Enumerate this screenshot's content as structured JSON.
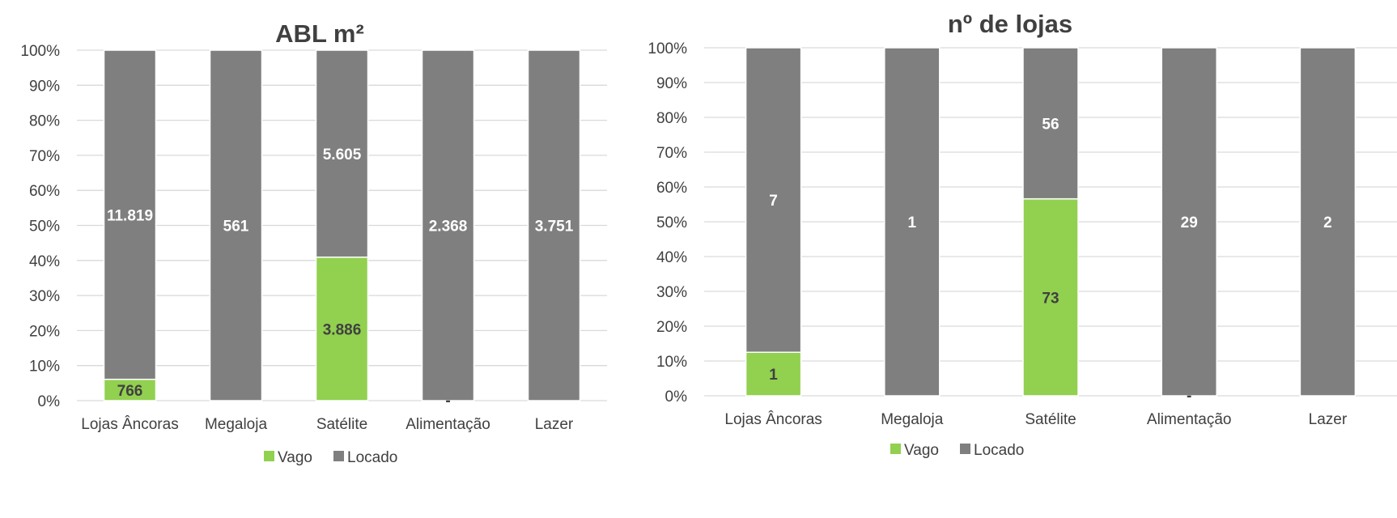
{
  "colors": {
    "vago": "#92d050",
    "locado": "#7f7f7f",
    "grid": "#d9d9d9",
    "text": "#404040"
  },
  "chart_data": [
    {
      "type": "bar",
      "stacked": "percent",
      "title": "ABL m²",
      "categories": [
        "Lojas Âncoras",
        "Megaloja",
        "Satélite",
        "Alimentação",
        "Lazer"
      ],
      "series": [
        {
          "name": "Vago",
          "values": [
            766,
            0,
            3886,
            0,
            0
          ],
          "labels": [
            "766",
            "",
            "3.886",
            "-",
            ""
          ]
        },
        {
          "name": "Locado",
          "values": [
            11819,
            561,
            5605,
            2368,
            3751
          ],
          "labels": [
            "11.819",
            "561",
            "5.605",
            "2.368",
            "3.751"
          ]
        }
      ],
      "ylim": [
        0,
        100
      ],
      "yticks": [
        "0%",
        "10%",
        "20%",
        "30%",
        "40%",
        "50%",
        "60%",
        "70%",
        "80%",
        "90%",
        "100%"
      ],
      "grid": true,
      "legend": "bottom"
    },
    {
      "type": "bar",
      "stacked": "percent",
      "title": "nº de lojas",
      "categories": [
        "Lojas Âncoras",
        "Megaloja",
        "Satélite",
        "Alimentação",
        "Lazer"
      ],
      "series": [
        {
          "name": "Vago",
          "values": [
            1,
            0,
            73,
            0,
            0
          ],
          "labels": [
            "1",
            "",
            "73",
            "-",
            ""
          ]
        },
        {
          "name": "Locado",
          "values": [
            7,
            1,
            56,
            29,
            2
          ],
          "labels": [
            "7",
            "1",
            "56",
            "29",
            "2"
          ]
        }
      ],
      "ylim": [
        0,
        100
      ],
      "yticks": [
        "0%",
        "10%",
        "20%",
        "30%",
        "40%",
        "50%",
        "60%",
        "70%",
        "80%",
        "90%",
        "100%"
      ],
      "grid": true,
      "legend": "bottom"
    }
  ]
}
